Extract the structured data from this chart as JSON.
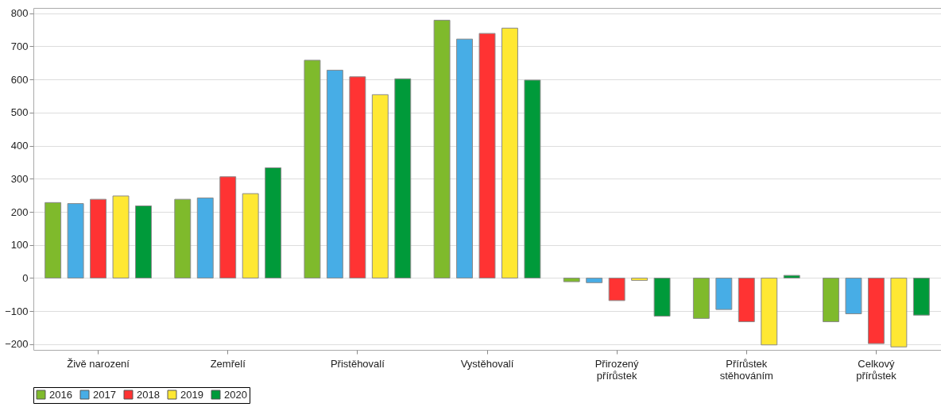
{
  "chart_data": {
    "type": "bar",
    "categories": [
      "Živě narození",
      "Zemřelí",
      "Přistěhovalí",
      "Vystěhovalí",
      "Přirozený\npřírůstek",
      "Přírůstek\nstěhováním",
      "Celkový\npřírůstek"
    ],
    "series": [
      {
        "name": "2016",
        "color": "#7fba2c",
        "values": [
          228,
          238,
          658,
          779,
          -11,
          -122,
          -132
        ]
      },
      {
        "name": "2017",
        "color": "#47ade6",
        "values": [
          225,
          242,
          628,
          722,
          -14,
          -95,
          -108
        ]
      },
      {
        "name": "2018",
        "color": "#ff3333",
        "values": [
          238,
          306,
          608,
          739,
          -68,
          -132,
          -198
        ]
      },
      {
        "name": "2019",
        "color": "#ffe833",
        "values": [
          248,
          255,
          554,
          755,
          -7,
          -202,
          -208
        ]
      },
      {
        "name": "2020",
        "color": "#009a3a",
        "values": [
          218,
          333,
          602,
          598,
          -115,
          8,
          -112
        ]
      }
    ],
    "ylim": [
      -217,
      816
    ],
    "yticks": [
      -200,
      -100,
      0,
      100,
      200,
      300,
      400,
      500,
      600,
      700,
      800
    ],
    "grid": "y",
    "legend": "bottom"
  }
}
